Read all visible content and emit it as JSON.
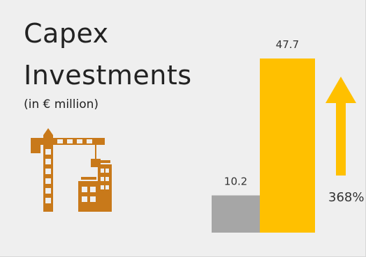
{
  "title_line1": "Capex",
  "title_line2": "Investments",
  "subtitle": "(in € million)",
  "icon": "construction-crane-buildings-icon",
  "change_label": "368%",
  "colors": {
    "previous_bar": "#a6a6a6",
    "current_bar": "#ffc000",
    "arrow": "#ffc000",
    "icon": "#c8791a"
  },
  "chart_data": {
    "type": "bar",
    "title": "Capex Investments",
    "subtitle": "(in € million)",
    "values": [
      10.2,
      47.7
    ],
    "labels": [
      "10.2",
      "47.7"
    ],
    "ylim": [
      0,
      47.7
    ],
    "grid": false,
    "change": "368%"
  }
}
